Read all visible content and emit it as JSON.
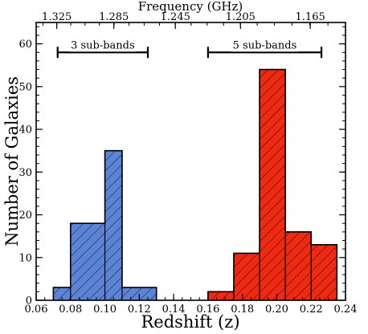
{
  "chart_data": {
    "type": "bar",
    "xlabel": "Redshift (z)",
    "ylabel": "Number of Galaxies",
    "top_axis_label": "Frequency (GHz)",
    "xlim": [
      0.06,
      0.24
    ],
    "ylim": [
      0,
      65
    ],
    "x_ticks": [
      "0.06",
      "0.08",
      "0.10",
      "0.12",
      "0.14",
      "0.16",
      "0.18",
      "0.20",
      "0.22",
      "0.24"
    ],
    "x_tick_values": [
      0.06,
      0.08,
      0.1,
      0.12,
      0.14,
      0.16,
      0.18,
      0.2,
      0.22,
      0.24
    ],
    "y_ticks": [
      "0",
      "10",
      "20",
      "30",
      "40",
      "50",
      "60"
    ],
    "y_tick_values": [
      0,
      10,
      20,
      30,
      40,
      50,
      60
    ],
    "top_ticks": [
      "1.325",
      "1.285",
      "1.245",
      "1.205",
      "1.165"
    ],
    "top_tick_z": [
      0.072,
      0.1052,
      0.141,
      0.1789,
      0.2195
    ],
    "series": [
      {
        "color": "#5b84d6",
        "bins": [
          {
            "x0": 0.07,
            "x1": 0.08,
            "value": 3
          },
          {
            "x0": 0.08,
            "x1": 0.1,
            "value": 18
          },
          {
            "x0": 0.1,
            "x1": 0.11,
            "value": 35
          },
          {
            "x0": 0.11,
            "x1": 0.13,
            "value": 3
          }
        ]
      },
      {
        "color": "#ee2a12",
        "bins": [
          {
            "x0": 0.16,
            "x1": 0.175,
            "value": 2
          },
          {
            "x0": 0.175,
            "x1": 0.19,
            "value": 11
          },
          {
            "x0": 0.19,
            "x1": 0.205,
            "value": 54
          },
          {
            "x0": 0.205,
            "x1": 0.22,
            "value": 16
          },
          {
            "x0": 0.22,
            "x1": 0.235,
            "value": 13
          }
        ]
      }
    ],
    "annotations": [
      {
        "label": "3 sub-bands",
        "x0": 0.0725,
        "x1": 0.125,
        "y": 58
      },
      {
        "label": "5 sub-bands",
        "x0": 0.16,
        "x1": 0.226,
        "y": 58
      }
    ]
  }
}
